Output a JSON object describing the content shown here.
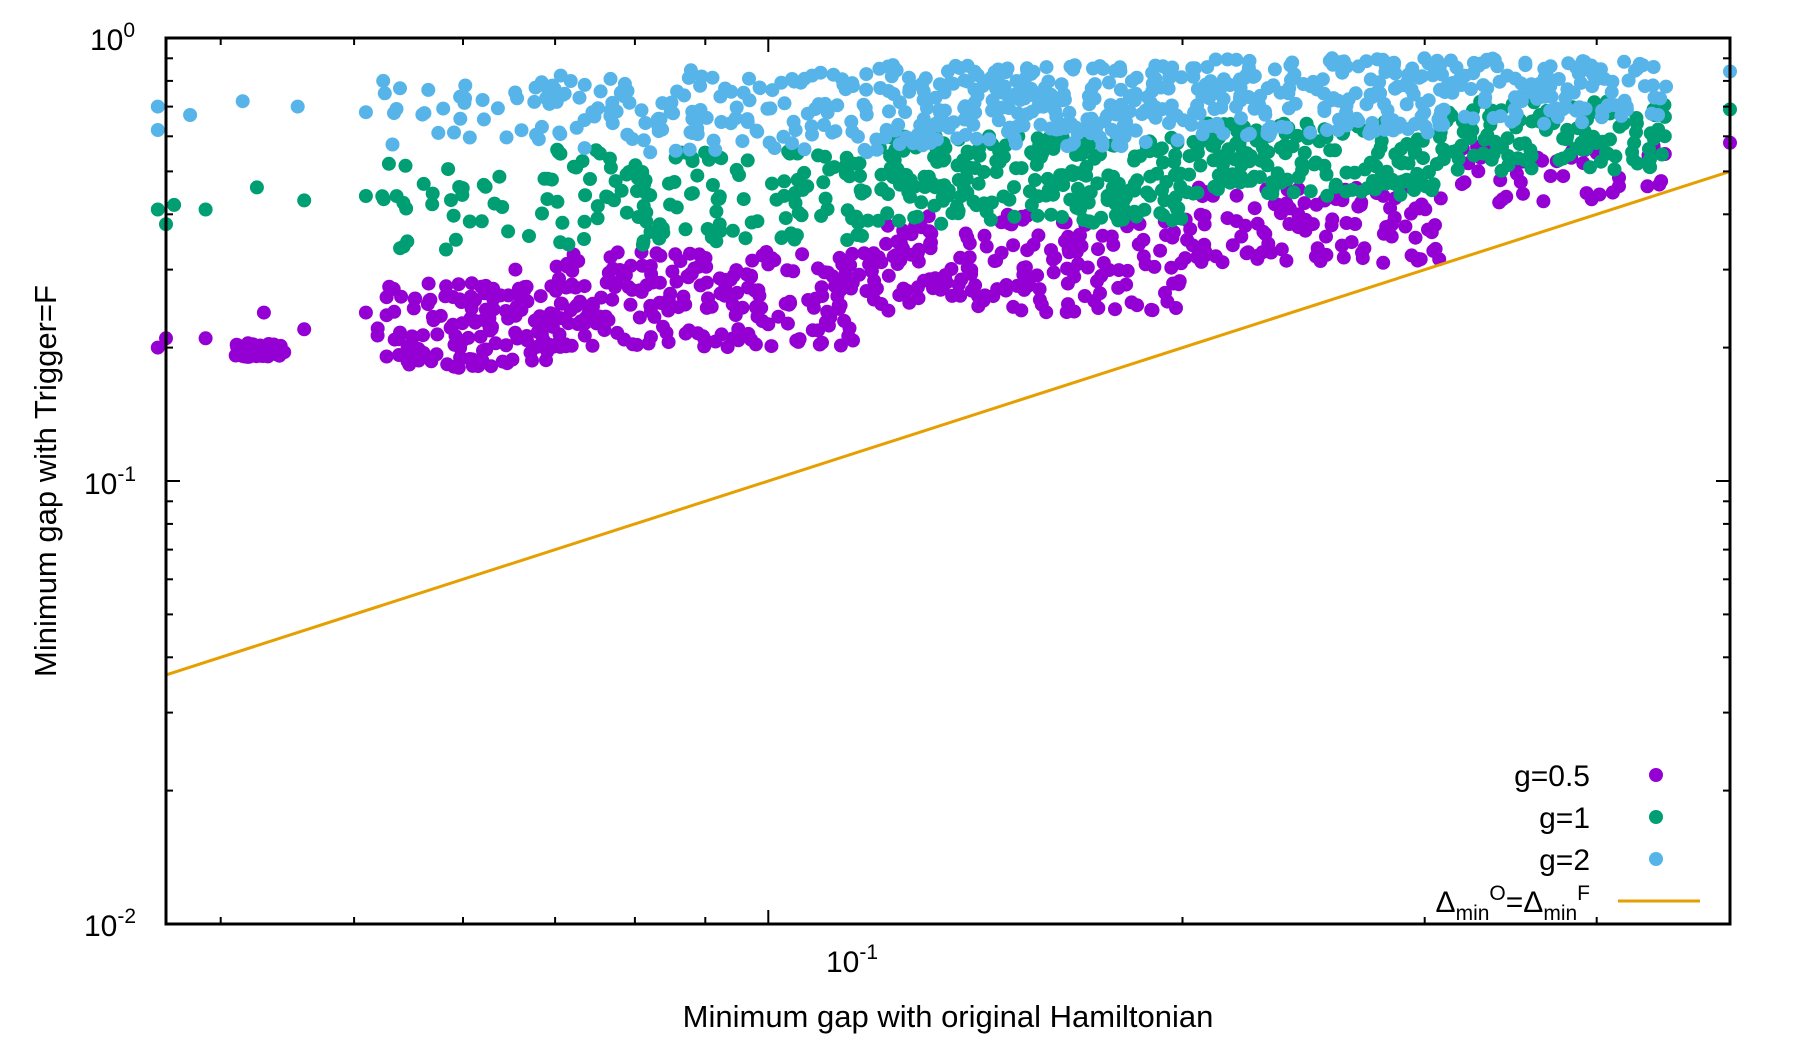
{
  "chart_data": {
    "type": "scatter",
    "title": "",
    "xlabel": "Minimum gap with original Hamiltonian",
    "ylabel": "Minimum gap with Trigger=F",
    "xscale": "log",
    "yscale": "log",
    "xlim": [
      0.0365,
      0.5
    ],
    "ylim": [
      0.01,
      1.0
    ],
    "x_ticks": [
      {
        "base": "10",
        "exp": "-1"
      }
    ],
    "y_ticks": [
      {
        "base": "10",
        "exp": "0"
      },
      {
        "base": "10",
        "exp": "-1"
      },
      {
        "base": "10",
        "exp": "-2"
      }
    ],
    "grid": false,
    "legend_position": "bottom-right",
    "legend": [
      {
        "label": "g=0.5"
      },
      {
        "label": "g=1"
      },
      {
        "label": "g=2"
      },
      {
        "label_parts": [
          "Δ",
          "min",
          "O",
          "=Δ",
          "min",
          "F"
        ]
      }
    ],
    "colors": {
      "g05": "#9400d3",
      "g1": "#009e73",
      "g2": "#56b4e9",
      "line": "#e69f00"
    },
    "series": [
      {
        "name": "g=0.5",
        "color": "#9400d3",
        "clusters": [
          {
            "x": [
              0.041,
              0.045,
              0.048,
              0.052
            ],
            "y": [
              0.19,
              0.205,
              0.215,
              0.23
            ]
          },
          {
            "x": [
              0.052,
              0.07
            ],
            "y": [
              0.18,
              0.28
            ]
          },
          {
            "x": [
              0.07,
              0.12
            ],
            "y": [
              0.2,
              0.33
            ]
          },
          {
            "x": [
              0.12,
              0.2
            ],
            "y": [
              0.24,
              0.4
            ]
          },
          {
            "x": [
              0.2,
              0.31
            ],
            "y": [
              0.31,
              0.46
            ]
          },
          {
            "x": [
              0.31,
              0.45
            ],
            "y": [
              0.42,
              0.57
            ]
          }
        ],
        "points": [
          {
            "x": 0.036,
            "y": 0.2
          },
          {
            "x": 0.0365,
            "y": 0.21
          },
          {
            "x": 0.039,
            "y": 0.21
          },
          {
            "x": 0.043,
            "y": 0.24
          },
          {
            "x": 0.046,
            "y": 0.22
          },
          {
            "x": 0.051,
            "y": 0.24
          },
          {
            "x": 0.0528,
            "y": 0.26
          },
          {
            "x": 0.055,
            "y": 0.19
          },
          {
            "x": 0.0655,
            "y": 0.3
          },
          {
            "x": 0.4,
            "y": 0.55
          },
          {
            "x": 0.44,
            "y": 0.57
          },
          {
            "x": 0.5,
            "y": 0.58
          }
        ]
      },
      {
        "name": "g=1",
        "color": "#009e73",
        "clusters": [
          {
            "x": [
              0.052,
              0.07
            ],
            "y": [
              0.33,
              0.52
            ]
          },
          {
            "x": [
              0.07,
              0.12
            ],
            "y": [
              0.34,
              0.56
            ]
          },
          {
            "x": [
              0.12,
              0.2
            ],
            "y": [
              0.38,
              0.6
            ]
          },
          {
            "x": [
              0.2,
              0.31
            ],
            "y": [
              0.44,
              0.65
            ]
          },
          {
            "x": [
              0.31,
              0.45
            ],
            "y": [
              0.5,
              0.72
            ]
          }
        ],
        "points": [
          {
            "x": 0.036,
            "y": 0.41
          },
          {
            "x": 0.0365,
            "y": 0.38
          },
          {
            "x": 0.037,
            "y": 0.42
          },
          {
            "x": 0.039,
            "y": 0.41
          },
          {
            "x": 0.0425,
            "y": 0.46
          },
          {
            "x": 0.046,
            "y": 0.43
          },
          {
            "x": 0.051,
            "y": 0.44
          },
          {
            "x": 0.053,
            "y": 0.52
          },
          {
            "x": 0.4,
            "y": 0.68
          },
          {
            "x": 0.44,
            "y": 0.69
          },
          {
            "x": 0.5,
            "y": 0.69
          }
        ]
      },
      {
        "name": "g=2",
        "color": "#56b4e9",
        "clusters": [
          {
            "x": [
              0.052,
              0.07
            ],
            "y": [
              0.55,
              0.8
            ]
          },
          {
            "x": [
              0.07,
              0.12
            ],
            "y": [
              0.55,
              0.85
            ]
          },
          {
            "x": [
              0.12,
              0.2
            ],
            "y": [
              0.57,
              0.87
            ]
          },
          {
            "x": [
              0.2,
              0.31
            ],
            "y": [
              0.6,
              0.9
            ]
          },
          {
            "x": [
              0.31,
              0.45
            ],
            "y": [
              0.64,
              0.9
            ]
          }
        ],
        "points": [
          {
            "x": 0.036,
            "y": 0.7
          },
          {
            "x": 0.036,
            "y": 0.62
          },
          {
            "x": 0.038,
            "y": 0.67
          },
          {
            "x": 0.0415,
            "y": 0.72
          },
          {
            "x": 0.0455,
            "y": 0.7
          },
          {
            "x": 0.051,
            "y": 0.68
          },
          {
            "x": 0.0525,
            "y": 0.8
          },
          {
            "x": 0.054,
            "y": 0.77
          },
          {
            "x": 0.4,
            "y": 0.85
          },
          {
            "x": 0.44,
            "y": 0.86
          },
          {
            "x": 0.5,
            "y": 0.84
          }
        ]
      },
      {
        "name": "Δ_min^O=Δ_min^F",
        "color": "#e69f00",
        "kind": "line",
        "x": [
          0.0365,
          0.5
        ],
        "y": [
          0.0365,
          0.5
        ]
      }
    ]
  }
}
